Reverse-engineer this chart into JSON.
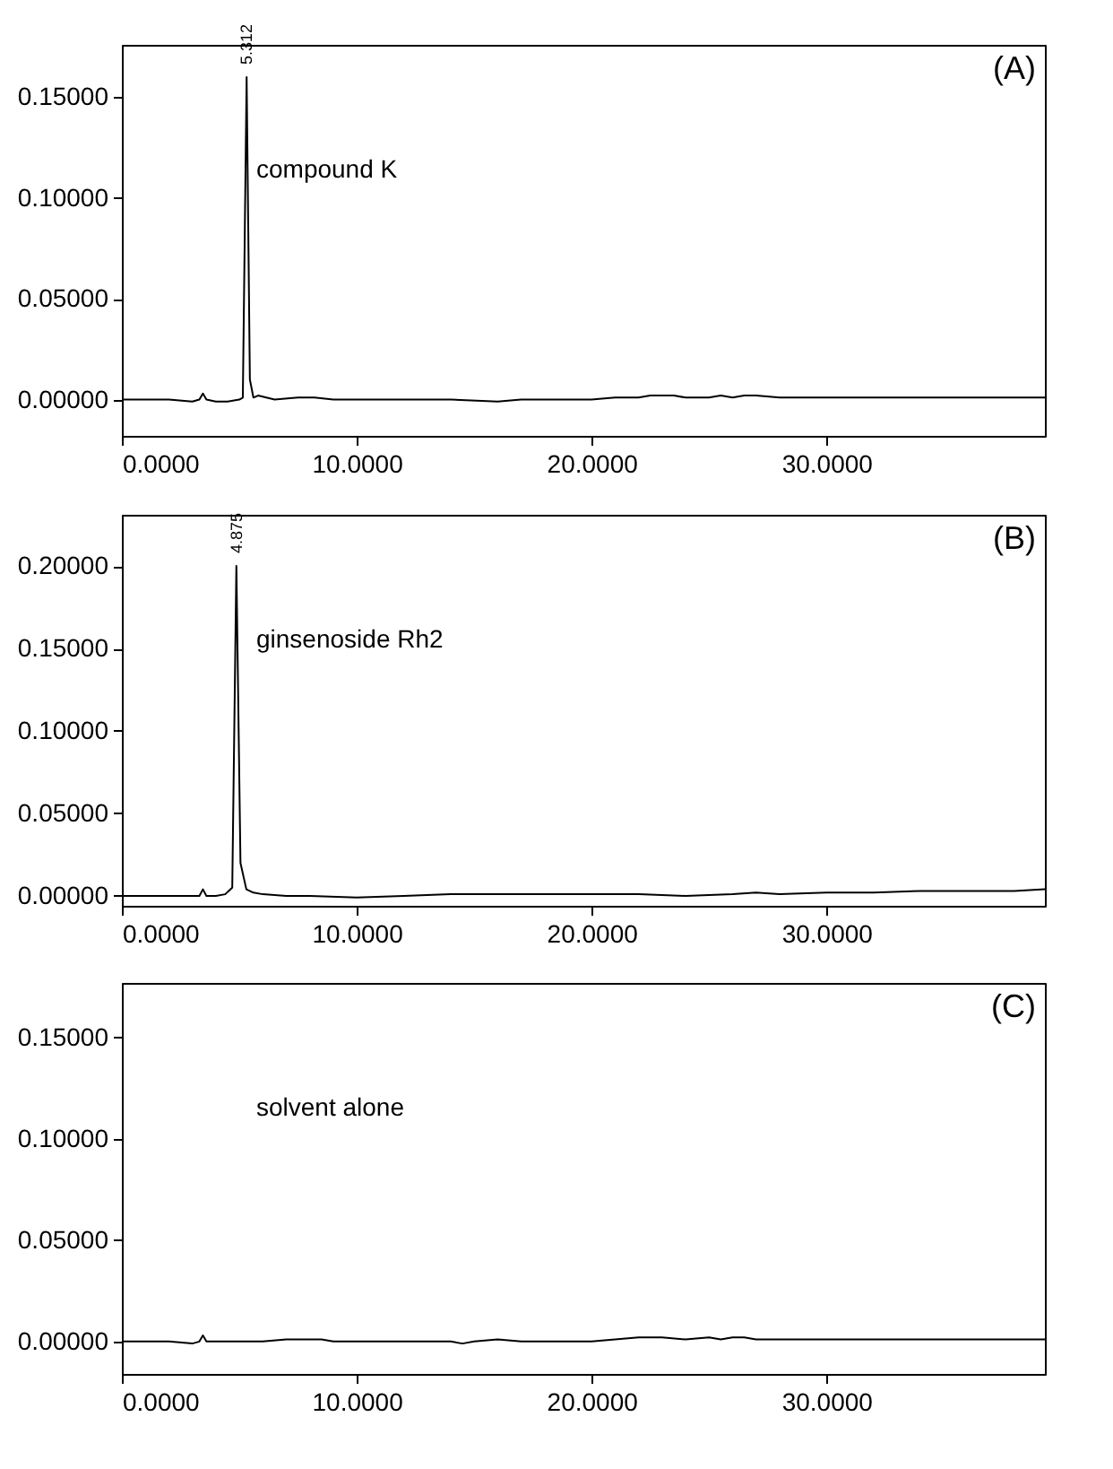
{
  "chart_data": [
    {
      "type": "line",
      "x": [
        0,
        1,
        2,
        3,
        3.3,
        3.45,
        3.6,
        4,
        4.5,
        5.0,
        5.15,
        5.312,
        5.45,
        5.6,
        5.8,
        6.5,
        7.5,
        8.2,
        9,
        10,
        12,
        14,
        16,
        17,
        18,
        20,
        21,
        22,
        22.5,
        23.5,
        24,
        25,
        25.5,
        26,
        26.5,
        27,
        28,
        30,
        32,
        34,
        36,
        38,
        39.3
      ],
      "values": [
        0,
        0,
        0,
        -0.001,
        0,
        0.003,
        0,
        -0.001,
        -0.001,
        0,
        0.001,
        0.16,
        0.01,
        0.001,
        0.002,
        0,
        0.001,
        0.001,
        0,
        0,
        0,
        0,
        -0.001,
        0,
        0,
        0,
        0.001,
        0.001,
        0.002,
        0.002,
        0.001,
        0.001,
        0.002,
        0.001,
        0.002,
        0.002,
        0.001,
        0.001,
        0.001,
        0.001,
        0.001,
        0.001,
        0.001
      ],
      "color": "#000000",
      "line_style": "solid",
      "marker": "none",
      "grid": false,
      "xlim": [
        0,
        39.3
      ],
      "ylim": [
        -0.018,
        0.176
      ],
      "xticks": [
        {
          "value": 0,
          "label": "0.0000"
        },
        {
          "value": 10,
          "label": "10.0000"
        },
        {
          "value": 20,
          "label": "20.0000"
        },
        {
          "value": 30,
          "label": "30.0000"
        }
      ],
      "yticks": [
        {
          "value": 0,
          "label": "0.00000"
        },
        {
          "value": 0.05,
          "label": "0.05000"
        },
        {
          "value": 0.1,
          "label": "0.10000"
        },
        {
          "value": 0.15,
          "label": "0.15000"
        }
      ],
      "annotations": [
        "(A)",
        "compound K",
        {
          "text": "5.312",
          "x": 5.312,
          "y": 0.16
        }
      ]
    },
    {
      "type": "line",
      "x": [
        0,
        1,
        2,
        3,
        3.3,
        3.45,
        3.6,
        4,
        4.4,
        4.7,
        4.875,
        5.05,
        5.3,
        5.6,
        6,
        7,
        8,
        10,
        12,
        14,
        16,
        18,
        20,
        22,
        24,
        26,
        27,
        28,
        30,
        32,
        34,
        36,
        38,
        39.3
      ],
      "values": [
        0,
        0,
        0,
        0,
        0,
        0.004,
        0,
        0,
        0.001,
        0.005,
        0.2,
        0.02,
        0.004,
        0.002,
        0.001,
        0,
        0,
        -0.001,
        0,
        0.001,
        0.001,
        0.001,
        0.001,
        0.001,
        0,
        0.001,
        0.002,
        0.001,
        0.002,
        0.002,
        0.003,
        0.003,
        0.003,
        0.004
      ],
      "color": "#000000",
      "line_style": "solid",
      "marker": "none",
      "grid": false,
      "xlim": [
        0,
        39.3
      ],
      "ylim": [
        -0.006,
        0.231
      ],
      "xticks": [
        {
          "value": 0,
          "label": "0.0000"
        },
        {
          "value": 10,
          "label": "10.0000"
        },
        {
          "value": 20,
          "label": "20.0000"
        },
        {
          "value": 30,
          "label": "30.0000"
        }
      ],
      "yticks": [
        {
          "value": 0,
          "label": "0.00000"
        },
        {
          "value": 0.05,
          "label": "0.05000"
        },
        {
          "value": 0.1,
          "label": "0.10000"
        },
        {
          "value": 0.15,
          "label": "0.15000"
        },
        {
          "value": 0.2,
          "label": "0.20000"
        }
      ],
      "annotations": [
        "(B)",
        "ginsenoside Rh2",
        {
          "text": "4.875",
          "x": 4.875,
          "y": 0.2
        }
      ]
    },
    {
      "type": "line",
      "x": [
        0,
        1,
        2,
        3,
        3.3,
        3.45,
        3.6,
        4,
        5,
        6,
        7,
        8,
        8.5,
        9,
        10,
        12,
        14,
        14.5,
        15,
        16,
        17,
        18,
        20,
        21,
        22,
        23,
        24,
        25,
        25.5,
        26,
        26.5,
        27,
        28,
        30,
        32,
        34,
        36,
        38,
        39.3
      ],
      "values": [
        0,
        0,
        0,
        -0.001,
        0,
        0.003,
        0,
        0,
        0,
        0,
        0.001,
        0.001,
        0.001,
        0,
        0,
        0,
        0,
        -0.001,
        0,
        0.001,
        0,
        0,
        0,
        0.001,
        0.002,
        0.002,
        0.001,
        0.002,
        0.001,
        0.002,
        0.002,
        0.001,
        0.001,
        0.001,
        0.001,
        0.001,
        0.001,
        0.001,
        0.001
      ],
      "color": "#000000",
      "line_style": "solid",
      "marker": "none",
      "grid": false,
      "xlim": [
        0,
        39.3
      ],
      "ylim": [
        -0.016,
        0.177
      ],
      "xticks": [
        {
          "value": 0,
          "label": "0.0000"
        },
        {
          "value": 10,
          "label": "10.0000"
        },
        {
          "value": 20,
          "label": "20.0000"
        },
        {
          "value": 30,
          "label": "30.0000"
        }
      ],
      "yticks": [
        {
          "value": 0,
          "label": "0.00000"
        },
        {
          "value": 0.05,
          "label": "0.05000"
        },
        {
          "value": 0.1,
          "label": "0.10000"
        },
        {
          "value": 0.15,
          "label": "0.15000"
        }
      ],
      "annotations": [
        "(C)",
        "solvent alone"
      ]
    }
  ]
}
